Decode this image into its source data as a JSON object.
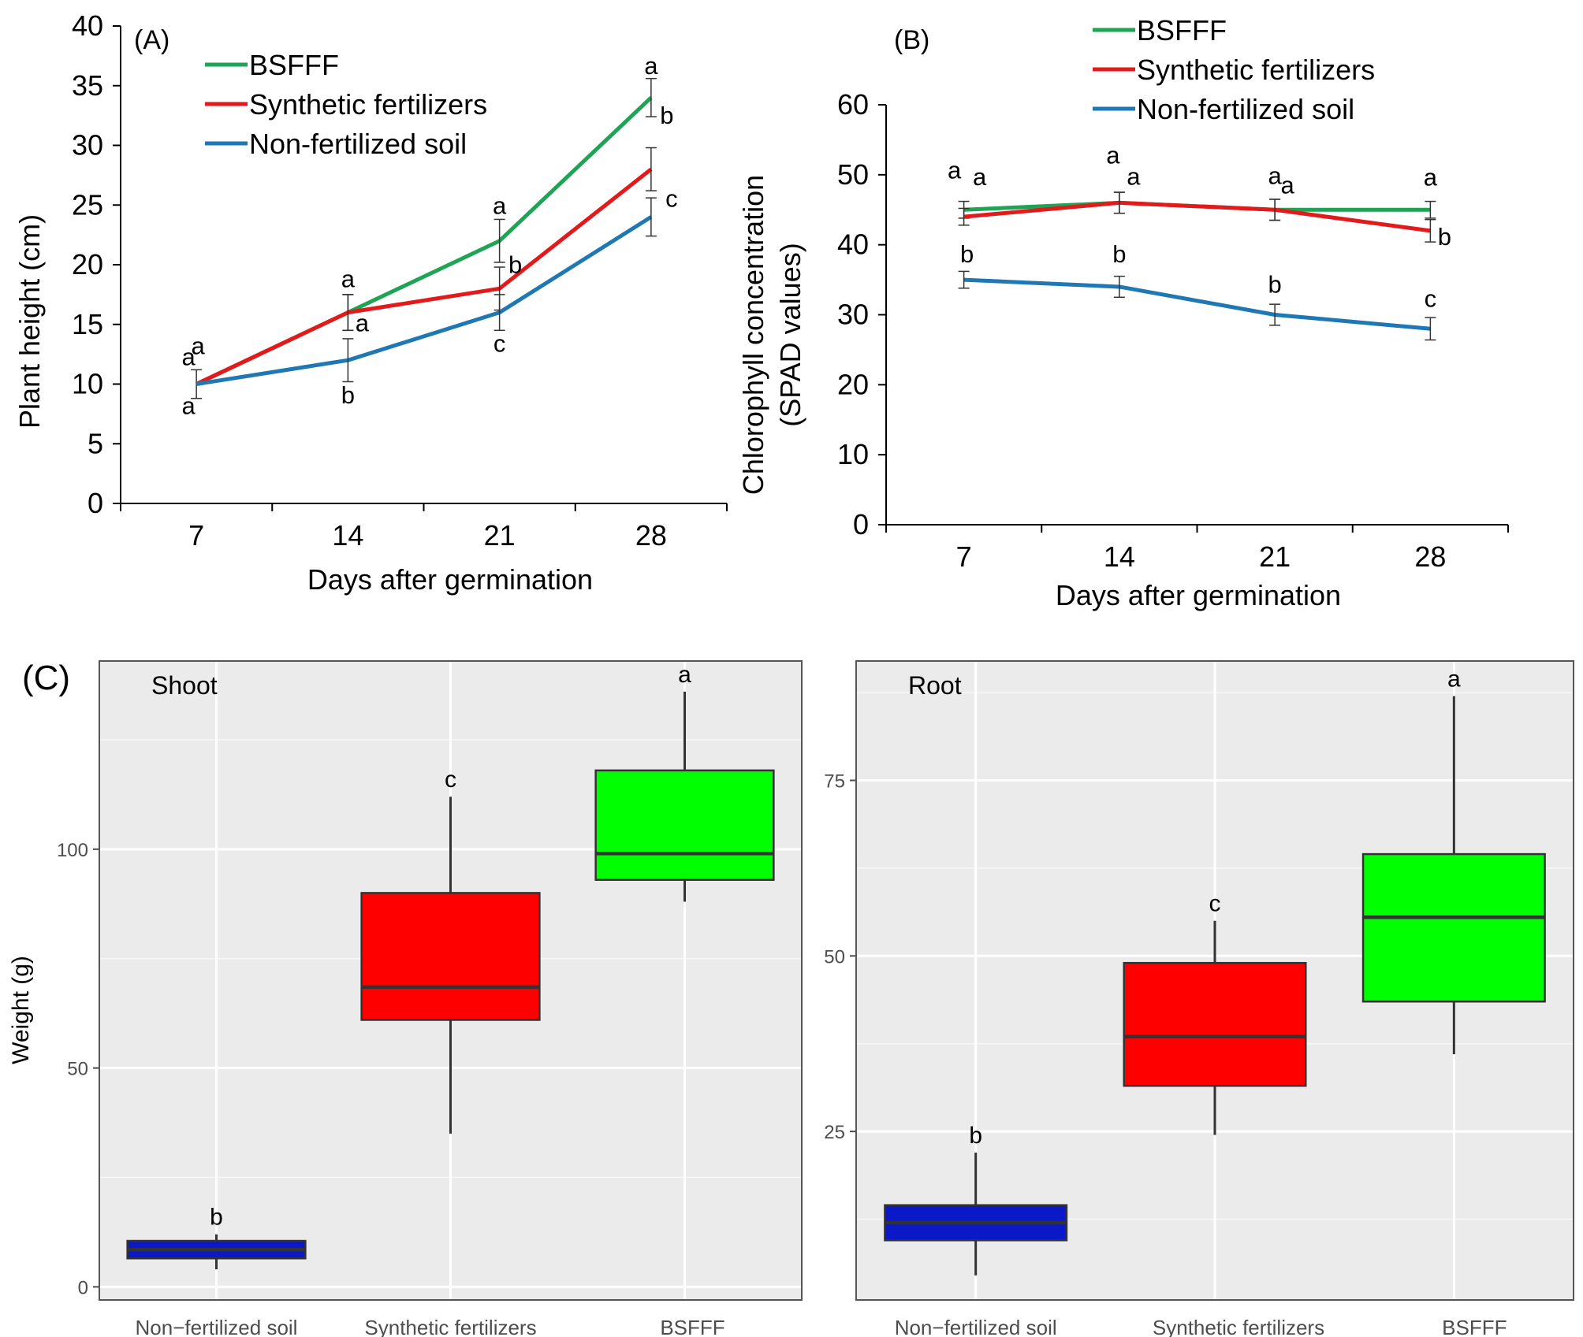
{
  "chart_data": [
    {
      "type": "line",
      "panel": "(A)",
      "xlabel": "Days after germination",
      "ylabel": "Plant height (cm)",
      "categories": [
        "7",
        "14",
        "21",
        "28"
      ],
      "ylim": [
        0,
        40
      ],
      "yticks": [
        "0",
        "5",
        "10",
        "15",
        "20",
        "25",
        "30",
        "35",
        "40"
      ],
      "legend_position": "top-left",
      "series": [
        {
          "name": "BSFFF",
          "color": "#1fa354",
          "values": [
            10,
            16,
            22,
            34
          ],
          "errors": [
            0,
            1.5,
            1.8,
            1.6
          ],
          "sig": [
            "a",
            "a",
            "a",
            "a"
          ]
        },
        {
          "name": "Synthetic fertilizers",
          "color": "#e31a1c",
          "values": [
            10,
            16,
            18,
            28
          ],
          "errors": [
            1.2,
            1.5,
            1.8,
            1.8
          ],
          "sig": [
            "a",
            "a",
            "b",
            "b"
          ]
        },
        {
          "name": "Non-fertilized soil",
          "color": "#1f78b4",
          "values": [
            10,
            12,
            16,
            24
          ],
          "errors": [
            0,
            1.8,
            1.5,
            1.6
          ],
          "sig": [
            "a",
            "b",
            "c",
            "c"
          ]
        }
      ]
    },
    {
      "type": "line",
      "panel": "(B)",
      "xlabel": "Days after germination",
      "ylabel_line1": "Chlorophyll concentration",
      "ylabel_line2": "(SPAD values)",
      "categories": [
        "7",
        "14",
        "21",
        "28"
      ],
      "ylim": [
        0,
        60
      ],
      "yticks": [
        "0",
        "10",
        "20",
        "30",
        "40",
        "50",
        "60"
      ],
      "legend_position": "top-right",
      "series": [
        {
          "name": "BSFFF",
          "color": "#1fa354",
          "values": [
            45,
            46,
            45,
            45
          ],
          "errors": [
            1.2,
            1.5,
            1.5,
            1.2
          ],
          "sig": [
            "a",
            "a",
            "a",
            "a"
          ]
        },
        {
          "name": "Synthetic fertilizers",
          "color": "#e31a1c",
          "values": [
            44,
            46,
            45,
            42
          ],
          "errors": [
            1.2,
            1.5,
            1.5,
            1.6
          ],
          "sig": [
            "a",
            "a",
            "a",
            "b"
          ]
        },
        {
          "name": "Non-fertilized soil",
          "color": "#1f78b4",
          "values": [
            35,
            34,
            30,
            28
          ],
          "errors": [
            1.2,
            1.5,
            1.5,
            1.6
          ],
          "sig": [
            "b",
            "b",
            "b",
            "c"
          ]
        }
      ]
    },
    {
      "type": "box",
      "panel": "(C)",
      "subtitle": "Shoot",
      "ylabel": "Weight (g)",
      "categories": [
        "Non−fertilized soil",
        "Synthetic fertilizers",
        "BSFFF"
      ],
      "ylim": [
        -3,
        143
      ],
      "yticks": [
        0,
        50,
        100
      ],
      "ytick_labels": [
        "0",
        "50",
        "100"
      ],
      "boxes": [
        {
          "name": "Non−fertilized soil",
          "color": "#0a18c8",
          "whisker_low": 4,
          "q1": 6.5,
          "median": 8.5,
          "q3": 10.5,
          "whisker_high": 12,
          "sig": "b"
        },
        {
          "name": "Synthetic fertilizers",
          "color": "#ff0000",
          "whisker_low": 35,
          "q1": 61,
          "median": 68.5,
          "q3": 90,
          "whisker_high": 112,
          "sig": "c"
        },
        {
          "name": "BSFFF",
          "color": "#00ff00",
          "whisker_low": 88,
          "q1": 93,
          "median": 99,
          "q3": 118,
          "whisker_high": 136,
          "sig": "a"
        }
      ]
    },
    {
      "type": "box",
      "panel": "",
      "subtitle": "Root",
      "ylabel": "",
      "categories": [
        "Non−fertilized soil",
        "Synthetic fertilizers",
        "BSFFF"
      ],
      "ylim": [
        1,
        92
      ],
      "yticks": [
        25,
        50,
        75
      ],
      "ytick_labels": [
        "25",
        "50",
        "75"
      ],
      "boxes": [
        {
          "name": "Non−fertilized soil",
          "color": "#0a18c8",
          "whisker_low": 4.5,
          "q1": 9.5,
          "median": 12,
          "q3": 14.5,
          "whisker_high": 22,
          "sig": "b"
        },
        {
          "name": "Synthetic fertilizers",
          "color": "#ff0000",
          "whisker_low": 24.5,
          "q1": 31.5,
          "median": 38.5,
          "q3": 49,
          "whisker_high": 55,
          "sig": "c"
        },
        {
          "name": "BSFFF",
          "color": "#00ff00",
          "whisker_low": 36,
          "q1": 43.5,
          "median": 55.5,
          "q3": 64.5,
          "whisker_high": 87,
          "sig": "a"
        }
      ]
    }
  ]
}
